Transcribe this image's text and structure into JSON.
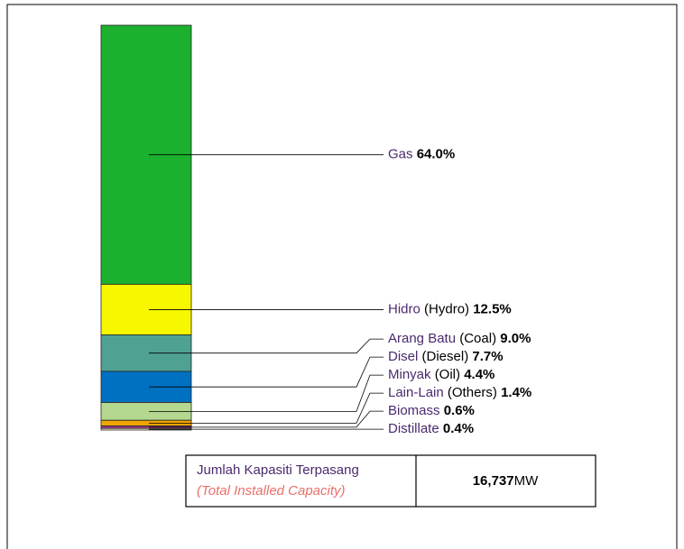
{
  "chart_data": {
    "type": "stacked_bar",
    "series": [
      {
        "name": "Gas",
        "color": "#1bb12e",
        "values": [
          64.0
        ],
        "value_labels": [
          "64.0%"
        ]
      },
      {
        "name": "Hidro",
        "name_en": "(Hydro)",
        "color": "#f7f700",
        "values": [
          12.5
        ],
        "value_labels": [
          "12.5%"
        ]
      },
      {
        "name": "Arang Batu",
        "name_en": "(Coal)",
        "color": "#4fa192",
        "values": [
          9.0
        ],
        "value_labels": [
          "9.0%"
        ]
      },
      {
        "name": "Disel",
        "name_en": "(Diesel)",
        "color": "#0070c0",
        "values": [
          7.7
        ],
        "value_labels": [
          "7.7%"
        ]
      },
      {
        "name": "Minyak",
        "name_en": "(Oil)",
        "color": "#b4d88f",
        "values": [
          4.4
        ],
        "value_labels": [
          "4.4%"
        ]
      },
      {
        "name": "Lain-Lain",
        "name_en": "(Others)",
        "color": "#f0a500",
        "values": [
          1.4
        ],
        "value_labels": [
          "1.4%"
        ]
      },
      {
        "name": "Biomass",
        "color": "#a23c8f",
        "values": [
          0.6
        ],
        "value_labels": [
          "0.6%"
        ]
      },
      {
        "name": "Distillate",
        "color": "#fffcd6",
        "values": [
          0.4
        ],
        "value_labels": [
          "0.4%"
        ]
      }
    ],
    "ylim": [
      0,
      100
    ],
    "total": {
      "label": "Jumlah Kapasiti Terpasang",
      "label_en": "(Total Installed Capacity)",
      "value": "16,737",
      "unit": "MW"
    }
  }
}
